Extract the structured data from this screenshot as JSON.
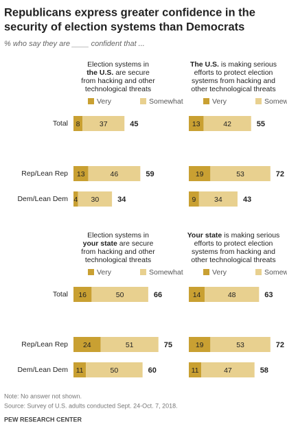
{
  "title": [
    "Republicans express greater confidence in the",
    "security of election systems than Democrats"
  ],
  "subtitle": "% who say they are ____ confident that ...",
  "note": "Note: No answer not shown.",
  "source": "Source: Survey of U.S. adults conducted Sept. 24-Oct. 7, 2018.",
  "footer": "PEW RESEARCH CENTER",
  "chart_data": [
    {
      "type": "bar",
      "stacked": true,
      "orientation": "horizontal",
      "title_lines": [
        [
          {
            "text": "Election systems in"
          }
        ],
        [
          {
            "text": "the U.S.",
            "bold": true
          },
          {
            "text": " are secure"
          }
        ],
        [
          {
            "text": "from hacking and other"
          }
        ],
        [
          {
            "text": "technological threats"
          }
        ]
      ],
      "categories": [
        "Total",
        "Rep/Lean Rep",
        "Dem/Lean Dem"
      ],
      "series": [
        {
          "name": "Very",
          "color": "#c9a032",
          "values": [
            8,
            13,
            4
          ]
        },
        {
          "name": "Somewhat",
          "color": "#e8d08f",
          "values": [
            37,
            46,
            30
          ]
        }
      ],
      "totals": [
        45,
        59,
        34
      ]
    },
    {
      "type": "bar",
      "stacked": true,
      "orientation": "horizontal",
      "title_lines": [
        [
          {
            "text": "The U.S.",
            "bold": true
          },
          {
            "text": " is making serious"
          }
        ],
        [
          {
            "text": "efforts to protect election"
          }
        ],
        [
          {
            "text": "systems from hacking and"
          }
        ],
        [
          {
            "text": "other technological threats"
          }
        ]
      ],
      "series": [
        {
          "name": "Very",
          "color": "#c9a032",
          "values": [
            13,
            19,
            9
          ]
        },
        {
          "name": "Somewhat",
          "color": "#e8d08f",
          "values": [
            42,
            53,
            34
          ]
        }
      ],
      "totals": [
        55,
        72,
        43
      ]
    },
    {
      "type": "bar",
      "stacked": true,
      "orientation": "horizontal",
      "title_lines": [
        [
          {
            "text": "Election systems in"
          }
        ],
        [
          {
            "text": "your state",
            "bold": true
          },
          {
            "text": " are secure"
          }
        ],
        [
          {
            "text": "from hacking and other"
          }
        ],
        [
          {
            "text": "technological threats"
          }
        ]
      ],
      "categories": [
        "Total",
        "Rep/Lean Rep",
        "Dem/Lean Dem"
      ],
      "series": [
        {
          "name": "Very",
          "color": "#c9a032",
          "values": [
            16,
            24,
            11
          ]
        },
        {
          "name": "Somewhat",
          "color": "#e8d08f",
          "values": [
            50,
            51,
            50
          ]
        }
      ],
      "totals": [
        66,
        75,
        60
      ]
    },
    {
      "type": "bar",
      "stacked": true,
      "orientation": "horizontal",
      "title_lines": [
        [
          {
            "text": "Your state",
            "bold": true
          },
          {
            "text": " is making serious"
          }
        ],
        [
          {
            "text": "efforts to protect election"
          }
        ],
        [
          {
            "text": "systems from hacking and"
          }
        ],
        [
          {
            "text": "other technological threats"
          }
        ]
      ],
      "series": [
        {
          "name": "Very",
          "color": "#c9a032",
          "values": [
            14,
            19,
            11
          ]
        },
        {
          "name": "Somewhat",
          "color": "#e8d08f",
          "values": [
            48,
            53,
            47
          ]
        }
      ],
      "totals": [
        63,
        72,
        58
      ]
    }
  ]
}
